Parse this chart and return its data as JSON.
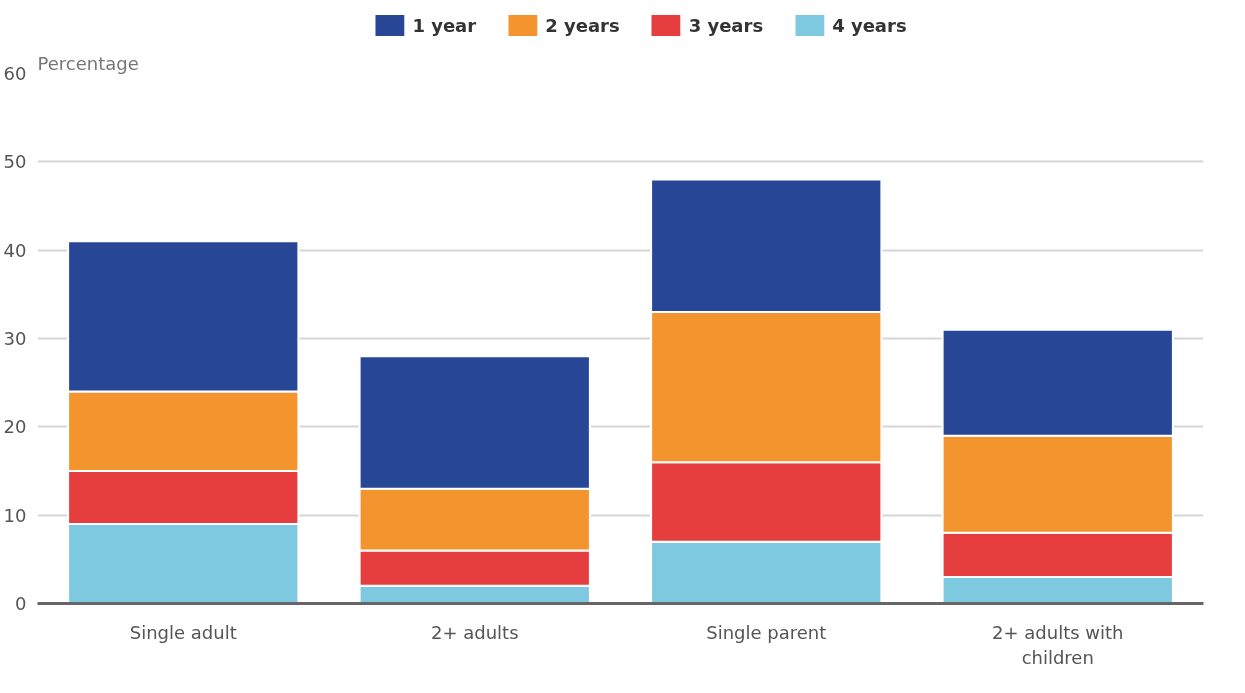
{
  "chart_data": {
    "type": "bar",
    "stacked": true,
    "ylabel": "Percentage",
    "categories": [
      "Single adult",
      "2+ adults",
      "Single parent",
      "2+ adults with children"
    ],
    "series": [
      {
        "name": "4 years",
        "color": "#7ec8e0",
        "values": [
          9,
          2,
          7,
          3
        ]
      },
      {
        "name": "3 years",
        "color": "#e63e3f",
        "values": [
          6,
          4,
          9,
          5
        ]
      },
      {
        "name": "2 years",
        "color": "#f4942e",
        "values": [
          9,
          7,
          17,
          11
        ]
      },
      {
        "name": "1 year",
        "color": "#274796",
        "values": [
          17,
          15,
          15,
          12
        ]
      }
    ],
    "ylim": [
      0,
      60
    ],
    "yticks": [
      0,
      10,
      20,
      30,
      40,
      50,
      60
    ],
    "grid": "y",
    "legend": "top"
  }
}
